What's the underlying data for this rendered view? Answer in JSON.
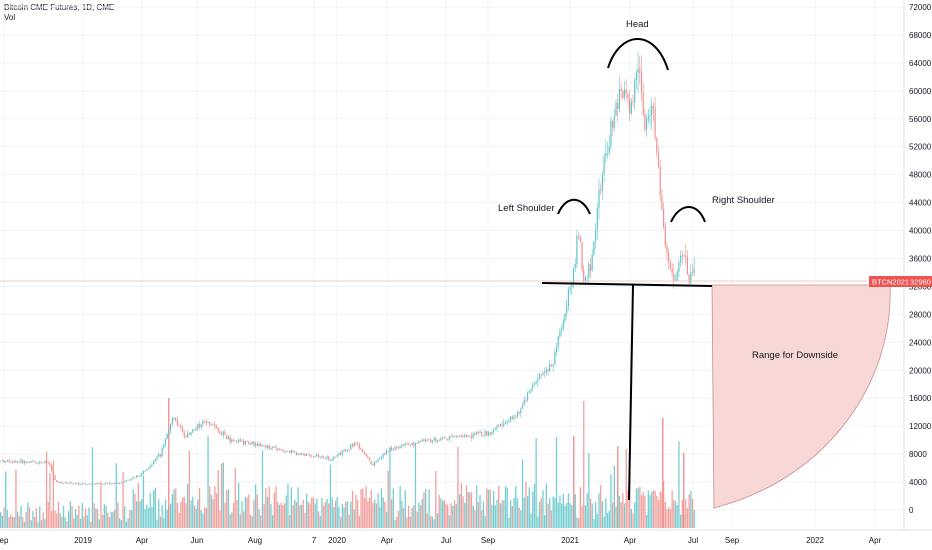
{
  "legend": {
    "title": "Bitcoin CME Futures, 1D, CME",
    "vol": "Vol"
  },
  "colors": {
    "up": "#5ec5c9",
    "down": "#ef8f8c",
    "price_line": "#f5b8b5",
    "tag_bg": "#ef5350",
    "wedge_fill": "#f8d7d7",
    "wedge_stroke": "#c98b8b",
    "drawing": "#000000"
  },
  "price_tag": {
    "symbol": "BTCN2021",
    "value": "32960"
  },
  "annotations": {
    "head": "Head",
    "left_shoulder": "Left Shoulder",
    "right_shoulder": "Right Shoulder",
    "range": "Range for Downside"
  },
  "chart_data": {
    "type": "candlestick",
    "title": "Bitcoin CME Futures, 1D, CME",
    "xlabel": "",
    "ylabel": "",
    "ylim": [
      -2000,
      74000
    ],
    "y_ticks": [
      "72000",
      "68000",
      "64000",
      "60000",
      "56000",
      "52000",
      "48000",
      "44000",
      "40000",
      "36000",
      "32000",
      "28000",
      "24000",
      "20000",
      "16000",
      "12000",
      "8000",
      "4000",
      "0"
    ],
    "x_ticks": [
      "ep",
      "2019",
      "Apr",
      "Jun",
      "Aug",
      "7",
      "2020",
      "Apr",
      "Jul",
      "Sep",
      "2021",
      "Apr",
      "Jul",
      "Sep",
      "2022",
      "Apr"
    ],
    "last_price": 32960,
    "neckline": 32500,
    "price_path": [
      {
        "date": "Sep",
        "price": 7000
      },
      {
        "date": "2019",
        "price": 3800
      },
      {
        "date": "Apr",
        "price": 5000
      },
      {
        "date": "Jun",
        "price": 9000
      },
      {
        "date": "Aug",
        "price": 10500
      },
      {
        "date": "7",
        "price": 8000
      },
      {
        "date": "2020",
        "price": 7500
      },
      {
        "date": "Apr",
        "price": 6800
      },
      {
        "date": "Jul",
        "price": 9300
      },
      {
        "date": "Sep",
        "price": 11000
      },
      {
        "date": "2021",
        "price": 29000
      },
      {
        "date": "Apr",
        "price": 58000
      },
      {
        "date": "Jul",
        "price": 34000
      }
    ],
    "pattern": [
      {
        "label": "Left Shoulder",
        "price": 42000
      },
      {
        "label": "Head",
        "price": 65000
      },
      {
        "label": "Right Shoulder",
        "price": 41000
      }
    ],
    "series": [
      {
        "name": "Vol",
        "type": "bar",
        "note": "daily volume bars, up/down colored"
      }
    ],
    "grid": true
  }
}
